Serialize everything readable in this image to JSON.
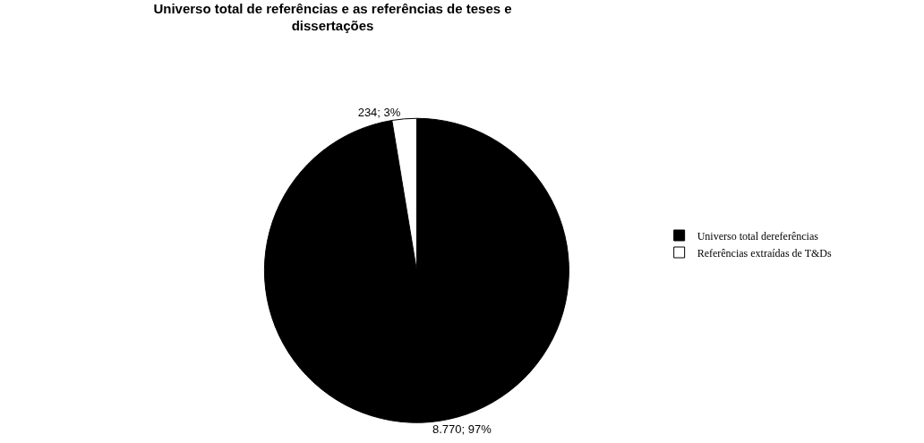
{
  "chart_data": {
    "type": "pie",
    "title": "Universo total de referências e as referências de teses e dissertações",
    "categories": [
      "Universo total dereferências",
      "Referências extraídas de T&Ds"
    ],
    "values": [
      8770,
      234
    ],
    "colors": [
      "#000000",
      "#ffffff"
    ],
    "value_labels": [
      "8.770; 97%",
      "234; 3%"
    ],
    "legend": "right"
  }
}
